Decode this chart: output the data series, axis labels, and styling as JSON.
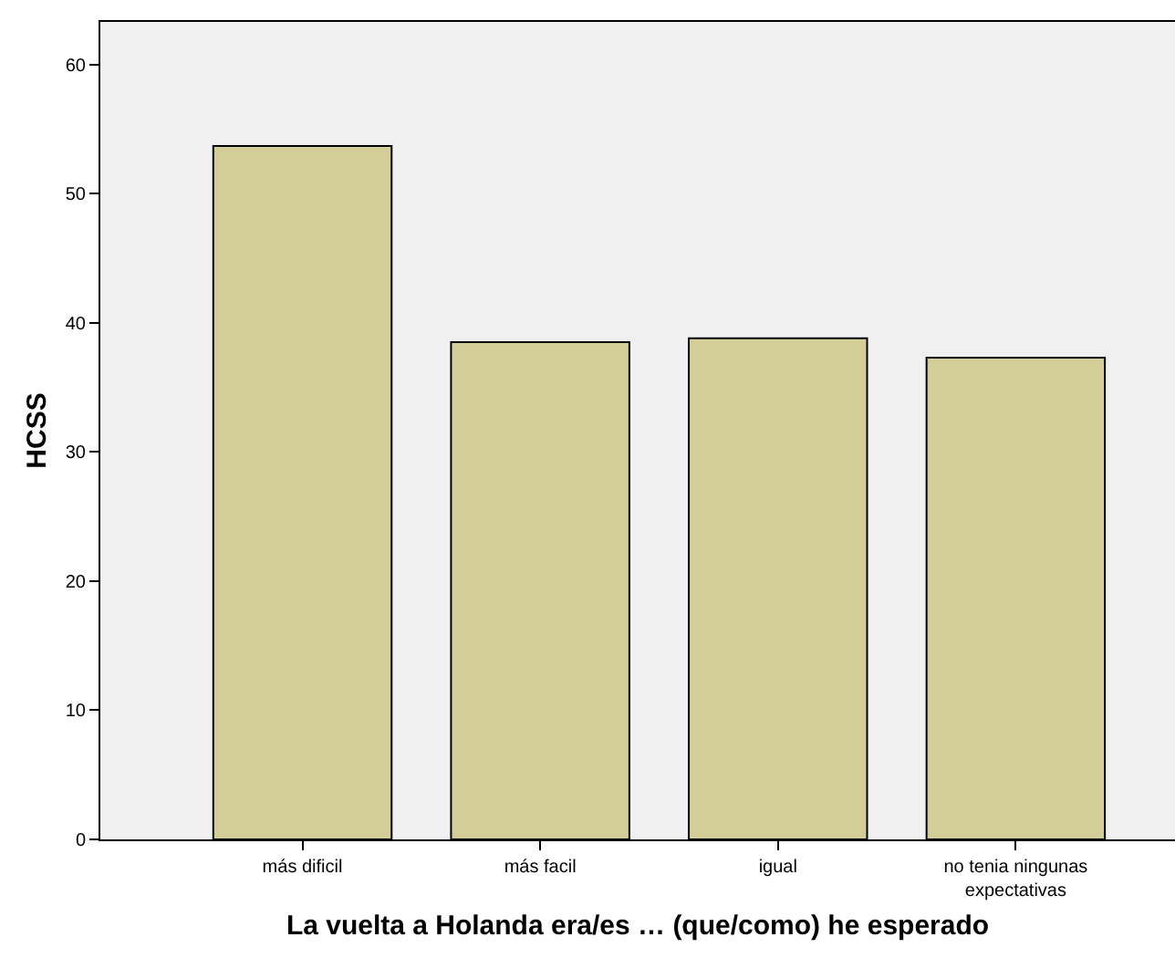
{
  "chart_data": {
    "type": "bar",
    "xlabel": "La vuelta a Holanda era/es … (que/como) he esperado",
    "ylabel": "HCSS",
    "categories": [
      "más dificil",
      "más facil",
      "igual",
      "no tenia ningunas expectativas"
    ],
    "values": [
      53.7,
      38.5,
      38.8,
      37.3
    ],
    "color": "#d3ce97",
    "ylim": [
      0,
      63.3
    ],
    "yticks": [
      0,
      10,
      20,
      30,
      40,
      50,
      60
    ]
  }
}
